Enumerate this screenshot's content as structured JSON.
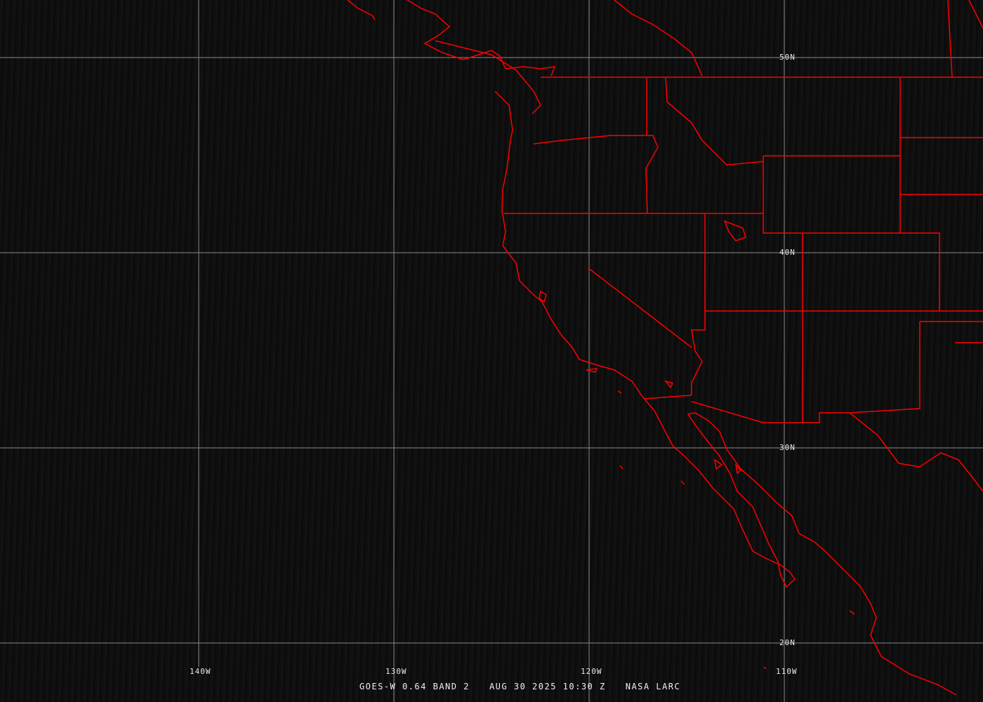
{
  "image": {
    "satellite_label": "GOES-W 0.64 BAND 2",
    "datetime": "AUG 30 2025 10:30 Z",
    "credit": "NASA LARC"
  },
  "grid": {
    "longitude_labels": [
      "140W",
      "130W",
      "120W",
      "110W"
    ],
    "latitude_labels": [
      "50N",
      "40N",
      "30N",
      "20N"
    ]
  },
  "colors": {
    "boundaries": "#ff0000",
    "grid": "#8a8a8a",
    "background": "#0b0b0b"
  }
}
